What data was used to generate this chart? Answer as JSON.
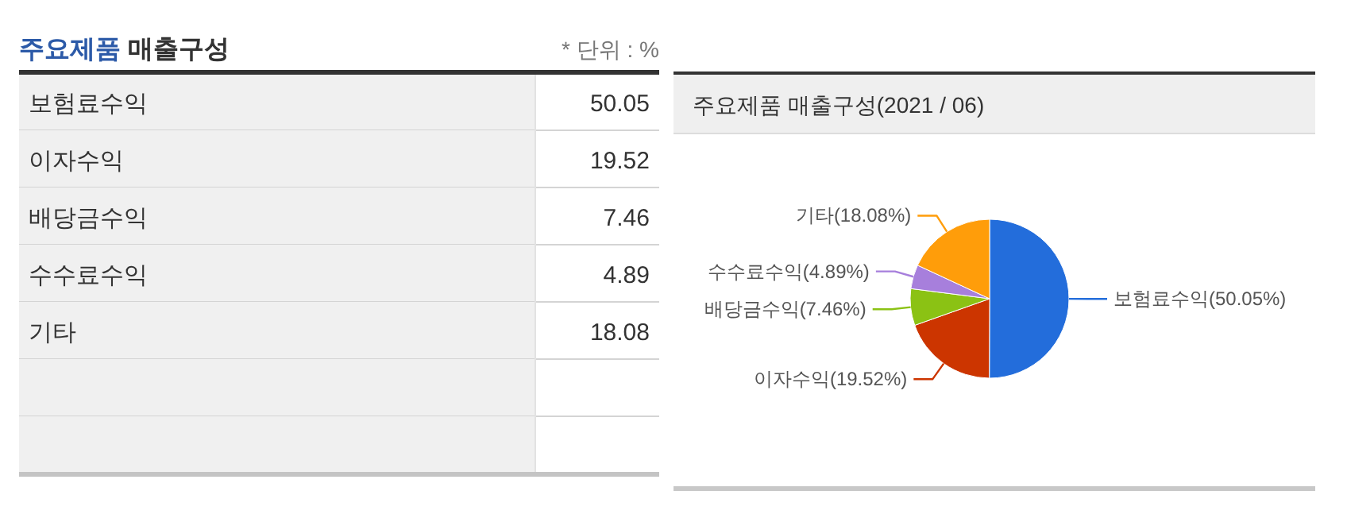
{
  "chart_data": [
    {
      "type": "other",
      "title": "주요제품 매출구성",
      "annotations": [
        "* 단위 : %"
      ],
      "categories": [
        "보험료수익",
        "이자수익",
        "배당금수익",
        "수수료수익",
        "기타",
        null,
        null
      ],
      "values": [
        50.05,
        19.52,
        7.46,
        4.89,
        18.08,
        null,
        null
      ],
      "data_labels": true
    },
    {
      "type": "pie",
      "title": "주요제품 매출구성(2021 / 06)",
      "categories": [
        "보험료수익",
        "이자수익",
        "배당금수익",
        "수수료수익",
        "기타"
      ],
      "values": [
        50.05,
        19.52,
        7.46,
        4.89,
        18.08
      ],
      "colors": [
        "#236ddb",
        "#cc3500",
        "#8bc214",
        "#a77fdc",
        "#ff9d0a"
      ],
      "value_labels": [
        "(50.05%)",
        "(19.52%)",
        "(7.46%)",
        "(4.89%)",
        "(18.08%)"
      ]
    }
  ]
}
